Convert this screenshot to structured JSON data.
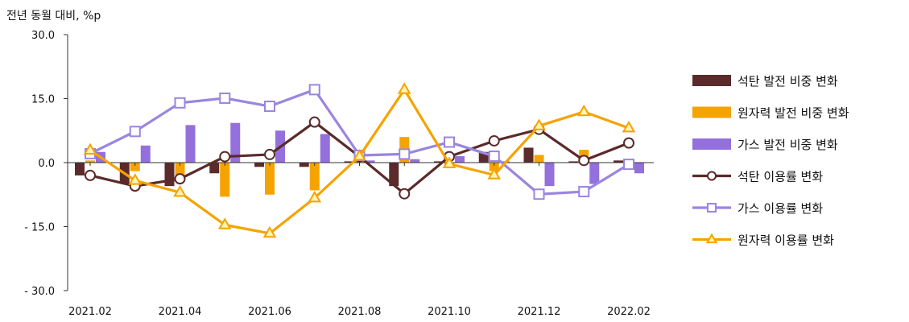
{
  "chart_data": {
    "type": "bar+line",
    "unit_label": "전년 동월 대비, %p",
    "x": [
      "2021.02",
      "2021.03",
      "2021.04",
      "2021.05",
      "2021.06",
      "2021.07",
      "2021.08",
      "2021.09",
      "2021.10",
      "2021.11",
      "2021.12",
      "2022.01",
      "2022.02"
    ],
    "x_tick_labels": [
      "2021.02",
      "2021.04",
      "2021.06",
      "2021.08",
      "2021.10",
      "2021.12",
      "2022.02"
    ],
    "y_ticks": [
      "30.0",
      "15.0",
      "0.0",
      "- 15.0",
      "- 30.0"
    ],
    "y_tick_values": [
      30,
      15,
      0,
      -15,
      -30
    ],
    "ylim": [
      -30,
      30
    ],
    "grid": false,
    "legend_position": "right",
    "bar_series": [
      {
        "name": "석탄 발전 비중 변화",
        "color": "#5b2a2a",
        "values": [
          -3.0,
          -5.0,
          -5.5,
          -2.5,
          -1.0,
          -1.0,
          0.3,
          -5.5,
          0.3,
          2.5,
          3.5,
          0.3,
          0.5
        ]
      },
      {
        "name": "원자력 발전 비중 변화",
        "color": "#f5a300",
        "values": [
          0.5,
          -2.0,
          -3.0,
          -8.0,
          -7.5,
          -6.5,
          0.3,
          6.0,
          -0.5,
          -2.0,
          1.8,
          3.0,
          0.3
        ]
      },
      {
        "name": "가스 발전 비중 변화",
        "color": "#9370db",
        "values": [
          2.5,
          4.0,
          8.8,
          9.3,
          7.5,
          6.7,
          0.5,
          0.8,
          1.5,
          0.3,
          -5.5,
          -5.0,
          -2.5
        ]
      }
    ],
    "line_series": [
      {
        "name": "석탄 이용률 변화",
        "color": "#5b2a2a",
        "marker": "circle",
        "values": [
          -3.0,
          -5.5,
          -3.8,
          1.4,
          1.9,
          9.5,
          1.4,
          -7.3,
          1.4,
          5.1,
          7.8,
          0.5,
          4.6
        ]
      },
      {
        "name": "가스 이용률 변화",
        "color": "#9a85e0",
        "marker": "square",
        "values": [
          2.1,
          7.3,
          14.0,
          15.1,
          13.2,
          17.1,
          1.7,
          2.0,
          4.8,
          1.5,
          -7.4,
          -6.8,
          -0.4
        ]
      },
      {
        "name": "원자력 이용률 변화",
        "color": "#f5a300",
        "marker": "triangle",
        "values": [
          2.9,
          -4.2,
          -7.0,
          -14.6,
          -16.6,
          -8.3,
          1.5,
          17.1,
          -0.3,
          -2.9,
          8.6,
          11.9,
          8.1
        ]
      }
    ]
  }
}
